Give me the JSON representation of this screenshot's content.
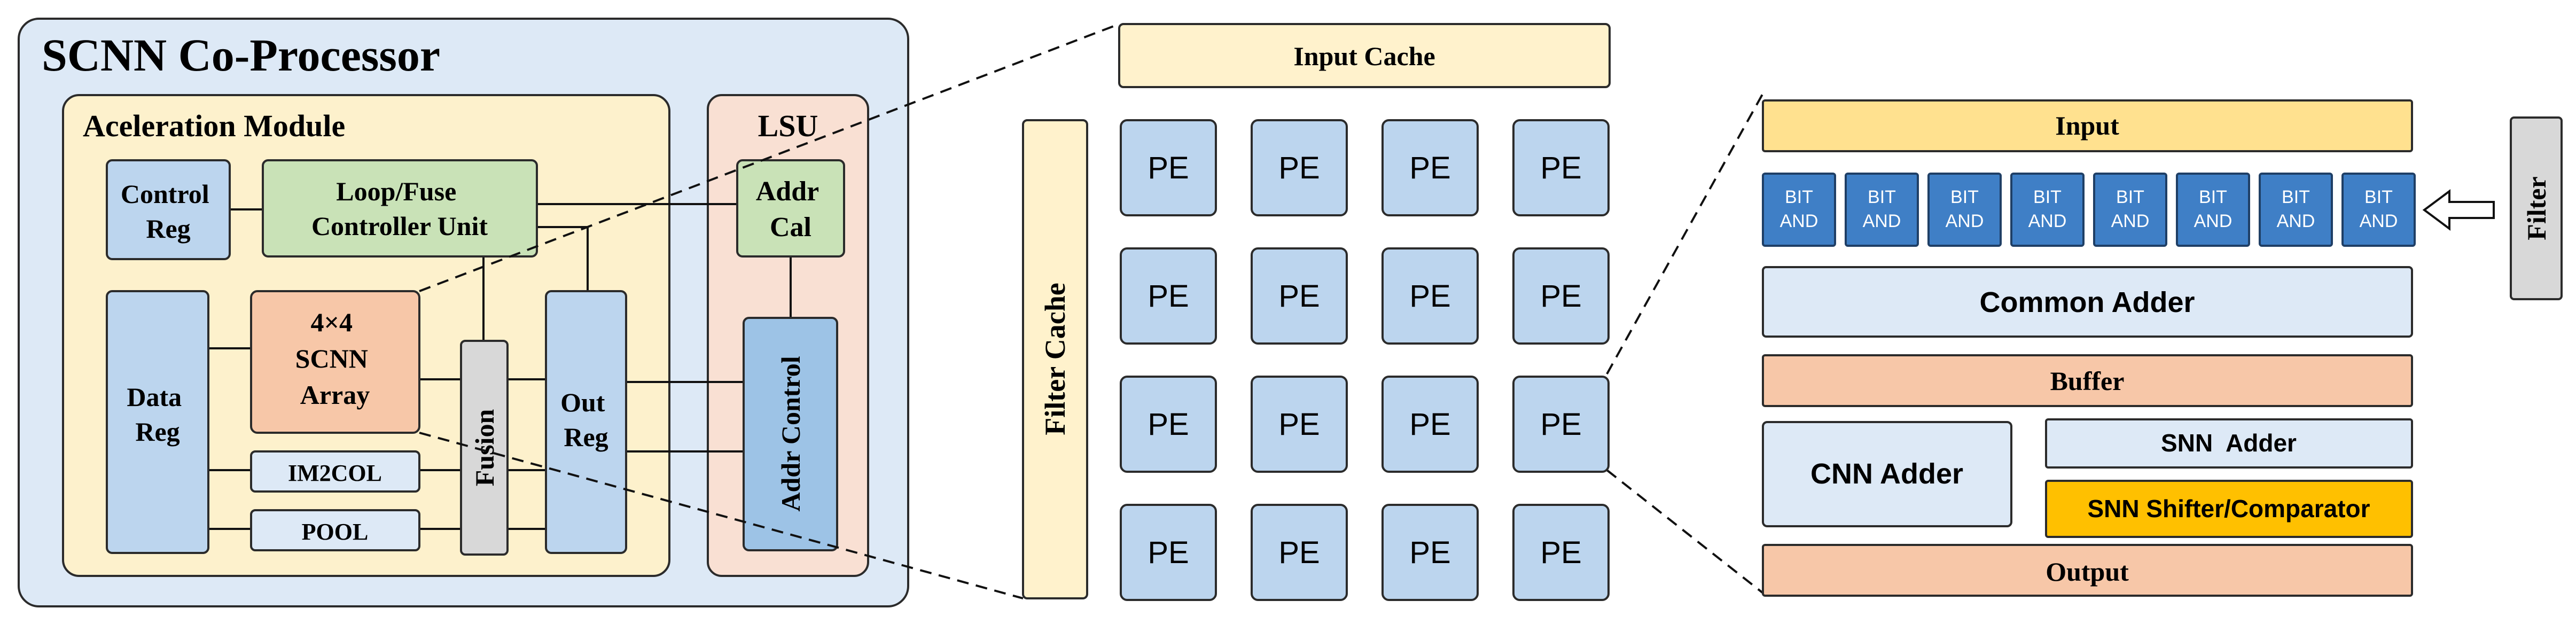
{
  "colors": {
    "panel_bg": "#dde9f6",
    "module_bg": "#fdf1cc",
    "lsu_bg": "#f9e0d3",
    "green": "#c9e2b7",
    "orange": "#f7c7a8",
    "blue": "#bcd5ee",
    "blue_dark": "#9dc3e6",
    "gray": "#d8d8d8",
    "yellow_light": "#fff2cc",
    "yellow": "#ffe18f",
    "bit_and": "#3f7fc6",
    "gold": "#ffc000"
  },
  "coprocessor": {
    "title": "SCNN Co-Processor",
    "module": {
      "title": "Aceleration Module",
      "control_reg": [
        "Control",
        "Reg"
      ],
      "loop_fuse": [
        "Loop/Fuse",
        "Controller Unit"
      ],
      "data_reg": [
        "Data",
        "Reg"
      ],
      "scnn_array": [
        "4×4",
        "SCNN",
        "Array"
      ],
      "im2col": "IM2COL",
      "pool": "POOL",
      "fusion": "Fusion",
      "out_reg": [
        "Out",
        "Reg"
      ]
    },
    "lsu": {
      "title": "LSU",
      "addr_cal": [
        "Addr",
        "Cal"
      ],
      "addr_control": "Addr Control"
    }
  },
  "array": {
    "input_cache": "Input Cache",
    "filter_cache": "Filter Cache",
    "pe_label": "PE",
    "rows": 4,
    "cols": 4
  },
  "pe_detail": {
    "input": "Input",
    "bit_and": [
      "BIT",
      "AND"
    ],
    "bit_and_count": 8,
    "filter": "Filter",
    "common_adder": "Common Adder",
    "buffer": "Buffer",
    "cnn_adder": "CNN Adder",
    "snn_adder": "SNN  Adder",
    "snn_shifter": "SNN Shifter/Comparator",
    "output": "Output"
  }
}
